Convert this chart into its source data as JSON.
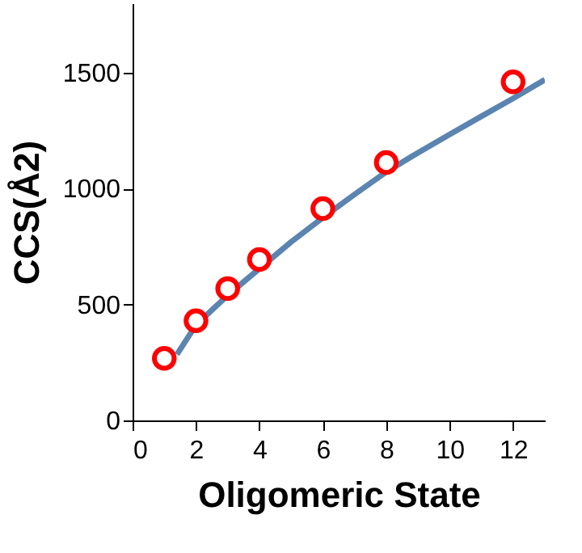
{
  "chart_data": {
    "type": "scatter",
    "xlabel": "Oligomeric State",
    "ylabel": "CCS(Å2)",
    "xlim": [
      0,
      13
    ],
    "ylim": [
      0,
      1800
    ],
    "xticks": [
      0,
      2,
      4,
      6,
      8,
      10,
      12
    ],
    "yticks": [
      0,
      500,
      1000,
      1500
    ],
    "grid": false,
    "series": [
      {
        "type": "line",
        "color": "#5b84b1",
        "marker": "none",
        "line_style": "solid",
        "x": [
          1.4,
          2,
          3,
          4,
          5,
          6,
          7,
          8,
          9,
          10,
          11,
          12,
          13
        ],
        "values": [
          285,
          412,
          540,
          655,
          770,
          875,
          975,
          1072,
          1155,
          1234,
          1312,
          1389,
          1470
        ]
      },
      {
        "color": "#ff0000",
        "marker": "circle",
        "x": [
          1,
          2,
          3,
          4,
          6,
          8,
          12
        ],
        "values": [
          268,
          430,
          569,
          694,
          914,
          1113,
          1461
        ]
      }
    ]
  }
}
